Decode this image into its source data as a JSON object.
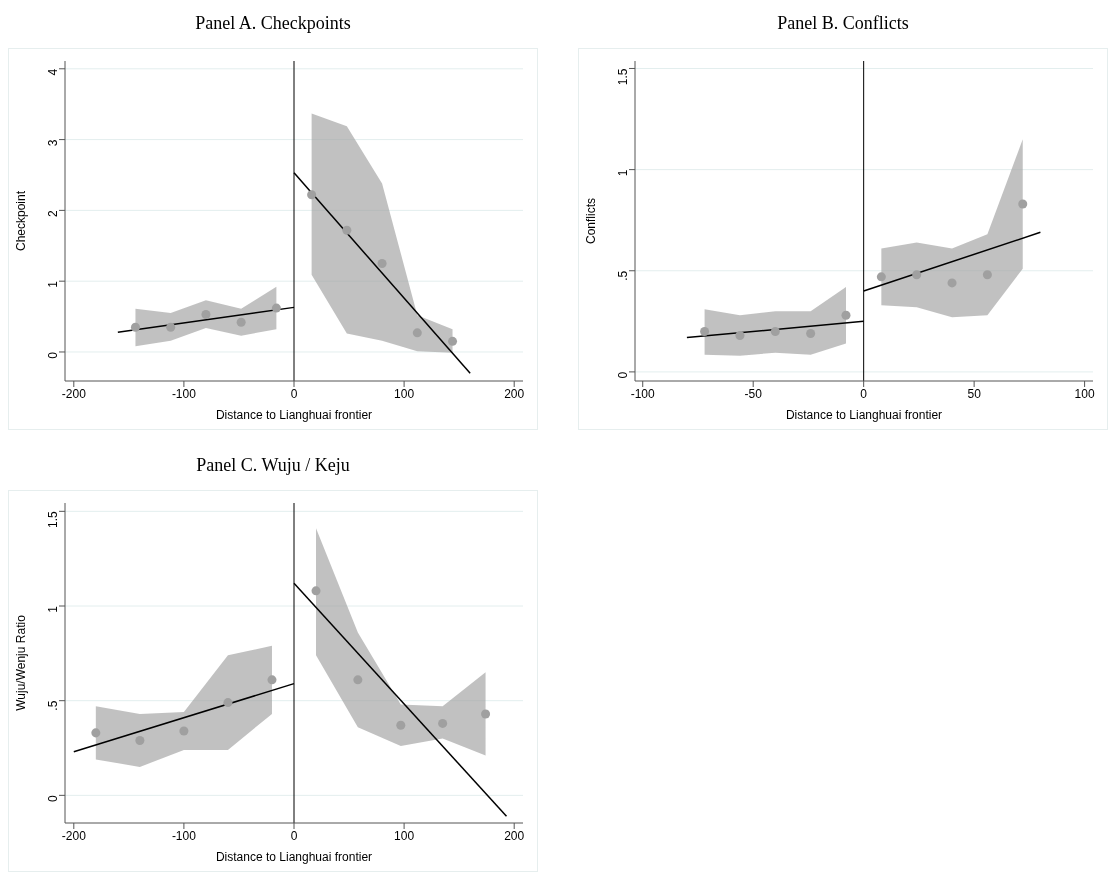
{
  "chart_data": [
    {
      "type": "scatter",
      "title": "Panel A. Checkpoints",
      "xlabel": "Distance to Lianghuai frontier",
      "ylabel": "Checkpoint",
      "xlim": [
        -208,
        208
      ],
      "ylim": [
        -0.41,
        4.11
      ],
      "xticks": [
        -200,
        -100,
        0,
        100,
        200
      ],
      "yticks": [
        0,
        1,
        2,
        3,
        4
      ],
      "grid": "y",
      "legend": false,
      "ref_lines": [
        {
          "axis": "x",
          "value": 0,
          "color": "#000000"
        }
      ],
      "series": [
        {
          "type": "scatter",
          "marker": "circle",
          "color": "#a0a0a0",
          "x": [
            -144,
            -112,
            -80,
            -48,
            -16
          ],
          "values": [
            0.35,
            0.35,
            0.53,
            0.42,
            0.62
          ],
          "lower": [
            0.08,
            0.16,
            0.34,
            0.23,
            0.32
          ],
          "upper": [
            0.61,
            0.55,
            0.73,
            0.61,
            0.92
          ]
        },
        {
          "type": "scatter",
          "marker": "circle",
          "color": "#a0a0a0",
          "x": [
            16,
            48,
            80,
            112,
            144
          ],
          "values": [
            2.22,
            1.72,
            1.25,
            0.27,
            0.15
          ],
          "lower": [
            1.09,
            0.26,
            0.16,
            0.01,
            -0.01
          ],
          "upper": [
            3.37,
            3.19,
            2.38,
            0.52,
            0.32
          ]
        },
        {
          "type": "line",
          "color": "#000000",
          "x": [
            -160,
            0
          ],
          "values": [
            0.28,
            0.63
          ]
        },
        {
          "type": "line",
          "color": "#000000",
          "x": [
            0,
            160
          ],
          "values": [
            2.53,
            -0.3
          ]
        }
      ]
    },
    {
      "type": "scatter",
      "title": "Panel B. Conflicts",
      "xlabel": "Distance to Lianghuai frontier",
      "ylabel": "Conflicts",
      "xlim": [
        -103.5,
        103.8
      ],
      "ylim": [
        -0.045,
        1.537
      ],
      "xticks": [
        -100,
        -50,
        0,
        50,
        100
      ],
      "yticks": [
        0,
        {
          "value": 0.5,
          "label": ".5"
        },
        1,
        1.5
      ],
      "grid": "y",
      "legend": false,
      "ref_lines": [
        {
          "axis": "x",
          "value": 0,
          "color": "#000000"
        }
      ],
      "series": [
        {
          "type": "scatter",
          "marker": "circle",
          "color": "#a0a0a0",
          "x": [
            -72,
            -56,
            -40,
            -24,
            -8
          ],
          "values": [
            0.2,
            0.18,
            0.2,
            0.19,
            0.28
          ],
          "lower": [
            0.085,
            0.08,
            0.095,
            0.085,
            0.14
          ],
          "upper": [
            0.31,
            0.28,
            0.3,
            0.3,
            0.42
          ]
        },
        {
          "type": "scatter",
          "marker": "circle",
          "color": "#a0a0a0",
          "x": [
            8,
            24,
            40,
            56,
            72
          ],
          "values": [
            0.47,
            0.48,
            0.44,
            0.48,
            0.83
          ],
          "lower": [
            0.33,
            0.32,
            0.27,
            0.28,
            0.51
          ],
          "upper": [
            0.61,
            0.64,
            0.61,
            0.68,
            1.15
          ]
        },
        {
          "type": "line",
          "color": "#000000",
          "x": [
            -80,
            0
          ],
          "values": [
            0.17,
            0.25
          ]
        },
        {
          "type": "line",
          "color": "#000000",
          "x": [
            0,
            80
          ],
          "values": [
            0.4,
            0.69
          ]
        }
      ]
    },
    {
      "type": "scatter",
      "title": "Panel C. Wuju / Keju",
      "xlabel": "Distance to Lianghuai frontier",
      "ylabel": "Wuju/Wenju Ratio",
      "xlim": [
        -208,
        208
      ],
      "ylim": [
        -0.146,
        1.544
      ],
      "xticks": [
        -200,
        -100,
        0,
        100,
        200
      ],
      "yticks": [
        0,
        {
          "value": 0.5,
          "label": ".5"
        },
        1,
        1.5
      ],
      "grid": "y",
      "legend": false,
      "ref_lines": [
        {
          "axis": "x",
          "value": 0,
          "color": "#000000"
        }
      ],
      "series": [
        {
          "type": "scatter",
          "marker": "circle",
          "color": "#a0a0a0",
          "x": [
            -180,
            -140,
            -100,
            -60,
            -20
          ],
          "values": [
            0.33,
            0.29,
            0.34,
            0.49,
            0.61
          ],
          "lower": [
            0.19,
            0.15,
            0.24,
            0.24,
            0.43
          ],
          "upper": [
            0.47,
            0.43,
            0.44,
            0.74,
            0.79
          ]
        },
        {
          "type": "scatter",
          "marker": "circle",
          "color": "#a0a0a0",
          "x": [
            20,
            58,
            97,
            135,
            174
          ],
          "values": [
            1.08,
            0.61,
            0.37,
            0.38,
            0.43
          ],
          "lower": [
            0.74,
            0.36,
            0.26,
            0.3,
            0.21
          ],
          "upper": [
            1.41,
            0.86,
            0.48,
            0.47,
            0.65
          ]
        },
        {
          "type": "line",
          "color": "#000000",
          "x": [
            -200,
            0
          ],
          "values": [
            0.23,
            0.59
          ]
        },
        {
          "type": "line",
          "color": "#000000",
          "x": [
            0,
            193
          ],
          "values": [
            1.12,
            -0.11
          ]
        }
      ]
    }
  ]
}
